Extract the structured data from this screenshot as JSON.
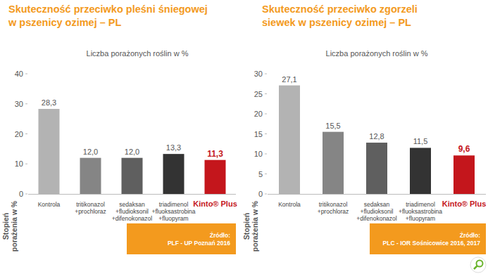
{
  "chart_data": [
    {
      "type": "bar",
      "title": "Skuteczność przeciwko pleśni śniegowej\nw pszenicy ozimej – PL",
      "subtitle": "Liczba porażonych roślin w %",
      "y_label": "Stopień\nporażenia w %",
      "categories": [
        "Kontrola",
        "tritikonazol\n+prochloraz",
        "sedaksan\n+fludioksonil\n+difenokonazol",
        "triadimenol\n+fluoksastrobina\n+fluopyram",
        "Kinto® Plus"
      ],
      "values": [
        28.3,
        12.0,
        12.0,
        13.3,
        11.3
      ],
      "value_labels": [
        "28,3",
        "12,0",
        "12,0",
        "13,3",
        "11,3"
      ],
      "colors": [
        "#b3b3b3",
        "#858585",
        "#5f5f5f",
        "#333333",
        "#c4161c"
      ],
      "data_labels": true,
      "ylim": [
        0,
        40
      ],
      "yticks": [
        0,
        10,
        20,
        30,
        40
      ],
      "grid": false,
      "annotations": [
        "Źródło:",
        "PLF - UP Poznań 2016"
      ]
    },
    {
      "type": "bar",
      "title": "Skuteczność przeciwko zgorzeli\nsiewek w pszenicy ozimej – PL",
      "subtitle": "Liczba porażonych roślin w %",
      "y_label": "Stopień\nporażenia w %",
      "categories": [
        "Kontrola",
        "tritikonazol\n+prochloraz",
        "sedaksan\n+fludioksonil\n+difenokonazol",
        "triadimenol\n+fluoksastrobina\n+fluopyram",
        "Kinto® Plus"
      ],
      "values": [
        27.1,
        15.5,
        12.8,
        11.5,
        9.6
      ],
      "value_labels": [
        "27,1",
        "15,5",
        "12,8",
        "11,5",
        "9,6"
      ],
      "colors": [
        "#b3b3b3",
        "#858585",
        "#5f5f5f",
        "#333333",
        "#c4161c"
      ],
      "data_labels": true,
      "ylim": [
        0,
        30
      ],
      "yticks": [
        0,
        5,
        10,
        15,
        20,
        25,
        30
      ],
      "grid": false,
      "annotations": [
        "Źródło:",
        "PLC - IOR Sośnicowice 2016, 2017"
      ]
    }
  ]
}
